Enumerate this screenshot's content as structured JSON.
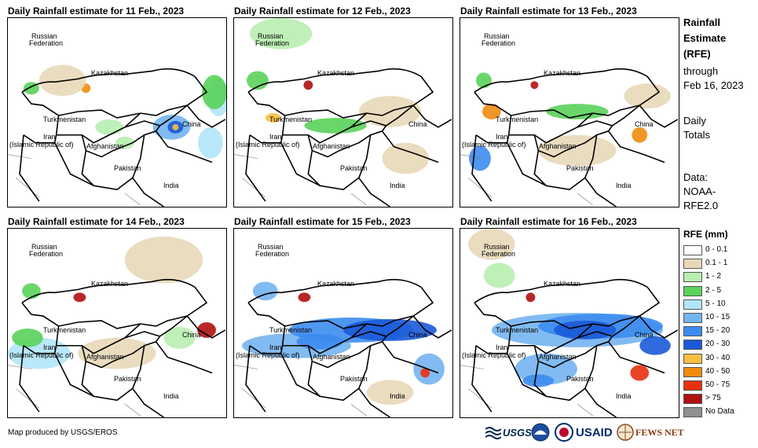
{
  "panels": [
    {
      "title": "Daily Rainfall estimate for 11 Feb., 2023"
    },
    {
      "title": "Daily Rainfall estimate for 12 Feb., 2023"
    },
    {
      "title": "Daily Rainfall estimate for 13 Feb., 2023"
    },
    {
      "title": "Daily Rainfall estimate for 14 Feb., 2023"
    },
    {
      "title": "Daily Rainfall estimate for 15 Feb., 2023"
    },
    {
      "title": "Daily Rainfall estimate for 16 Feb., 2023"
    }
  ],
  "map_labels": {
    "russia_1": "Russian",
    "russia_2": "Federation",
    "kazakhstan": "Kazakhstan",
    "turkmenistan": "Turkmenistan",
    "iran_1": "Iran",
    "iran_2": "(Islamic Republic of)",
    "afghanistan": "Afghanistan",
    "china": "China",
    "pakistan": "Pakistan",
    "india": "India"
  },
  "side_panel": {
    "title_1": "Rainfall",
    "title_2": "Estimate",
    "title_3": "(RFE)",
    "through_1": "through",
    "through_2": "Feb 16, 2023",
    "daily_1": "Daily",
    "daily_2": "Totals",
    "data_1": "Data:",
    "data_2": "NOAA-",
    "data_3": "RFE2.0"
  },
  "legend": {
    "title": "RFE (mm)",
    "items": [
      {
        "label": "0 - 0.1",
        "color": "#ffffff"
      },
      {
        "label": "0.1 - 1",
        "color": "#e8d8b8"
      },
      {
        "label": "1 - 2",
        "color": "#b8eeb0"
      },
      {
        "label": "2 - 5",
        "color": "#5ad25a"
      },
      {
        "label": "5 - 10",
        "color": "#b0e6f8"
      },
      {
        "label": "10 - 15",
        "color": "#74b4f0"
      },
      {
        "label": "15 - 20",
        "color": "#3c8cf0"
      },
      {
        "label": "20 - 30",
        "color": "#1a5ad8"
      },
      {
        "label": "30 - 40",
        "color": "#f8c040"
      },
      {
        "label": "40 - 50",
        "color": "#f08c10"
      },
      {
        "label": "50 - 75",
        "color": "#e83010"
      },
      {
        "label": "> 75",
        "color": "#b01010"
      },
      {
        "label": "No Data",
        "color": "#909090"
      }
    ]
  },
  "credit": "Map produced by USGS/EROS",
  "logos": {
    "usgs": "USGS",
    "usaid": "USAID",
    "fewsnet": "FEWS NET"
  }
}
